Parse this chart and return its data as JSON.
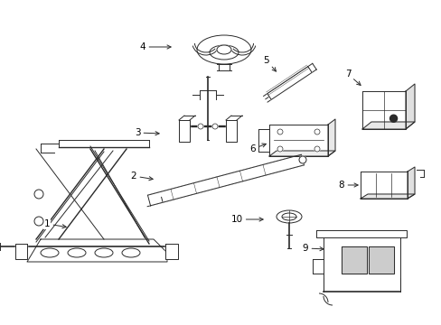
{
  "background_color": "#ffffff",
  "line_color": "#2a2a2a",
  "text_color": "#000000",
  "fig_width": 4.89,
  "fig_height": 3.6,
  "dpi": 100
}
